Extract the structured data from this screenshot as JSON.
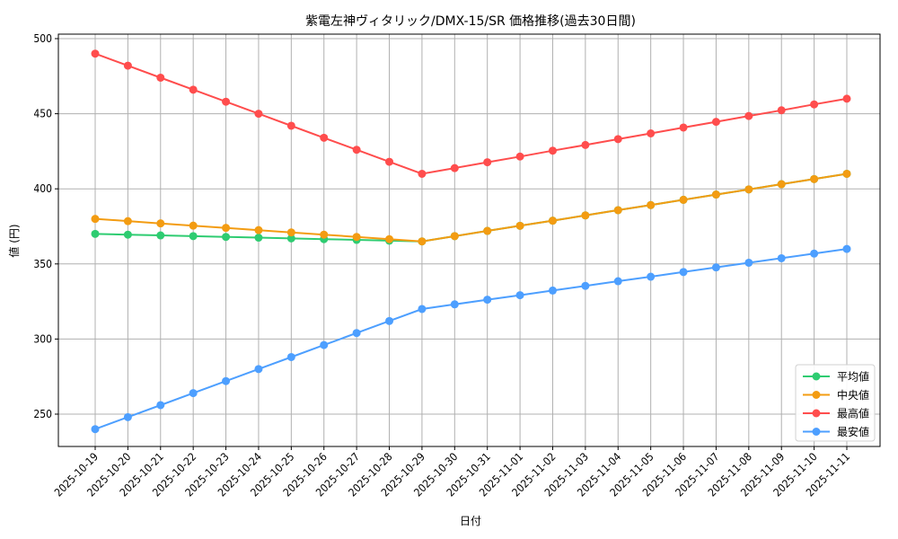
{
  "chart_data": {
    "type": "line",
    "title": "紫電左神ヴィタリック/DMX-15/SR 価格推移(過去30日間)",
    "xlabel": "日付",
    "ylabel": "値 (円)",
    "ylim": [
      227,
      502
    ],
    "yticks": [
      250,
      300,
      350,
      400,
      450,
      500
    ],
    "grid": true,
    "legend_position": "lower right",
    "categories": [
      "2025-10-19",
      "2025-10-20",
      "2025-10-21",
      "2025-10-22",
      "2025-10-23",
      "2025-10-24",
      "2025-10-25",
      "2025-10-26",
      "2025-10-27",
      "2025-10-28",
      "2025-10-29",
      "2025-10-30",
      "2025-10-31",
      "2025-11-01",
      "2025-11-02",
      "2025-11-03",
      "2025-11-04",
      "2025-11-05",
      "2025-11-06",
      "2025-11-07",
      "2025-11-08",
      "2025-11-09",
      "2025-11-10",
      "2025-11-11"
    ],
    "series": [
      {
        "name": "平均値",
        "color": "#2ecc71",
        "values": [
          370,
          369.5,
          369,
          368.5,
          368,
          367.5,
          367,
          366.5,
          366,
          365.5,
          365,
          368.5,
          372,
          375.4,
          378.8,
          382.3,
          385.8,
          389.2,
          392.7,
          396.2,
          399.6,
          403.1,
          406.5,
          410
        ]
      },
      {
        "name": "中央値",
        "color": "#f39c12",
        "values": [
          380,
          378.5,
          377,
          375.5,
          374,
          372.5,
          371,
          369.5,
          368,
          366.5,
          365,
          368.5,
          372,
          375.4,
          378.8,
          382.3,
          385.8,
          389.2,
          392.7,
          396.2,
          399.6,
          403.1,
          406.5,
          410
        ]
      },
      {
        "name": "最高値",
        "color": "#ff4d4d",
        "values": [
          490,
          482,
          474,
          466,
          458,
          450,
          442,
          434,
          426,
          418,
          410,
          413.8,
          417.7,
          421.5,
          425.4,
          429.2,
          433.1,
          436.9,
          440.8,
          444.6,
          448.5,
          452.3,
          456.2,
          460
        ]
      },
      {
        "name": "最安値",
        "color": "#4d9fff",
        "values": [
          240,
          248,
          256,
          264,
          272,
          280,
          288,
          296,
          304,
          312,
          320,
          323.1,
          326.2,
          329.2,
          332.3,
          335.4,
          338.5,
          341.5,
          344.6,
          347.7,
          350.8,
          353.8,
          356.9,
          360
        ]
      }
    ]
  }
}
